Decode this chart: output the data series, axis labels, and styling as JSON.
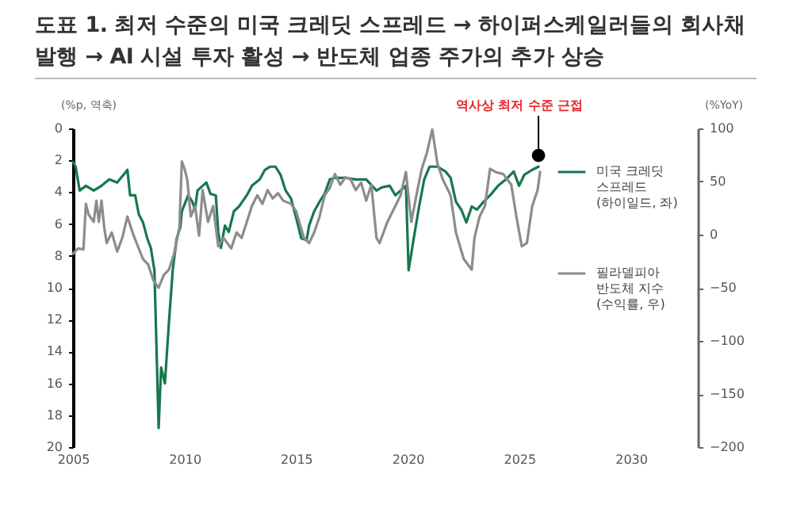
{
  "chart_data": {
    "type": "line",
    "title": "도표 1. 최저 수준의 미국 크레딧 스프레드 → 하이퍼스케일러들의 회사채 발행 → AI 시설 투자 활성 → 반도체 업종 주가의 추가 상승",
    "ylabel": "(%p, 역축)",
    "y2label": "(%YoY)",
    "xlim": [
      2005,
      2033
    ],
    "xticks": [
      2005,
      2010,
      2015,
      2020,
      2025,
      2030
    ],
    "ylim": [
      20,
      0
    ],
    "yticks": [
      0,
      2,
      4,
      6,
      8,
      10,
      12,
      14,
      16,
      18,
      20
    ],
    "y2lim": [
      -200,
      100
    ],
    "y2ticks": [
      {
        "value": -200,
        "label": "−200"
      },
      {
        "value": -150,
        "label": "−150"
      },
      {
        "value": -100,
        "label": "−100"
      },
      {
        "value": -50,
        "label": "−50"
      },
      0,
      50,
      100
    ],
    "legend": "right",
    "grid": false,
    "marker": "none",
    "line_style": "solid",
    "annotations": [
      {
        "text": "역사상 최저 수준 근접",
        "x": 2025.86,
        "y": 1.7
      }
    ],
    "series": [
      {
        "name": "미국 크레딧 스프레드 (하이일드, 좌)",
        "color": "#17784b",
        "axis": "y",
        "x": [
          2005.0,
          2005.12,
          2005.3,
          2005.58,
          2005.93,
          2006.28,
          2006.63,
          2006.98,
          2007.33,
          2007.44,
          2007.56,
          2007.79,
          2007.95,
          2008.14,
          2008.33,
          2008.49,
          2008.65,
          2008.84,
          2008.95,
          2009.12,
          2009.3,
          2009.47,
          2009.65,
          2009.81,
          2009.88,
          2010.05,
          2010.16,
          2010.35,
          2010.47,
          2010.58,
          2010.81,
          2010.98,
          2011.16,
          2011.4,
          2011.51,
          2011.63,
          2011.81,
          2011.98,
          2012.21,
          2012.44,
          2012.79,
          2013.02,
          2013.37,
          2013.6,
          2013.84,
          2014.07,
          2014.3,
          2014.53,
          2014.77,
          2015.0,
          2015.23,
          2015.47,
          2015.58,
          2015.81,
          2016.05,
          2016.28,
          2016.51,
          2016.74,
          2017.21,
          2017.67,
          2018.14,
          2018.6,
          2018.84,
          2019.19,
          2019.45,
          2019.68,
          2019.92,
          2020.04,
          2020.27,
          2020.51,
          2020.74,
          2020.98,
          2021.33,
          2021.69,
          2021.92,
          2022.16,
          2022.4,
          2022.63,
          2022.87,
          2023.1,
          2023.34,
          2023.69,
          2024.05,
          2024.4,
          2024.75,
          2024.99,
          2025.23,
          2025.58,
          2025.86
        ],
        "values": [
          2.1,
          2.4,
          3.9,
          3.6,
          3.9,
          3.6,
          3.2,
          3.4,
          2.8,
          2.6,
          4.2,
          4.2,
          5.4,
          5.9,
          6.9,
          7.5,
          8.9,
          18.8,
          15.0,
          16.0,
          12.2,
          8.9,
          6.9,
          6.2,
          5.2,
          4.6,
          4.2,
          4.6,
          5.1,
          3.9,
          3.6,
          3.4,
          4.1,
          4.2,
          6.5,
          7.5,
          6.1,
          6.5,
          5.2,
          4.9,
          4.2,
          3.6,
          3.2,
          2.6,
          2.4,
          2.4,
          2.9,
          3.9,
          4.4,
          5.6,
          6.9,
          7.0,
          6.1,
          5.2,
          4.6,
          4.1,
          3.2,
          3.1,
          3.1,
          3.2,
          3.2,
          3.9,
          3.7,
          3.6,
          4.2,
          3.9,
          3.6,
          8.9,
          6.9,
          4.9,
          3.2,
          2.4,
          2.4,
          2.7,
          3.1,
          4.6,
          5.1,
          5.9,
          4.9,
          5.1,
          4.7,
          4.2,
          3.6,
          3.2,
          2.7,
          3.6,
          2.9,
          2.6,
          2.4
        ]
      },
      {
        "name": "필라델피아 반도체 지수 (수익률, 우)",
        "color": "#8c8c8c",
        "axis": "y2",
        "x": [
          2005.0,
          2005.23,
          2005.47,
          2005.58,
          2005.7,
          2005.93,
          2006.05,
          2006.16,
          2006.28,
          2006.4,
          2006.51,
          2006.74,
          2006.98,
          2007.21,
          2007.44,
          2007.67,
          2007.91,
          2008.14,
          2008.37,
          2008.6,
          2008.84,
          2009.07,
          2009.3,
          2009.53,
          2009.77,
          2009.88,
          2010.0,
          2010.12,
          2010.28,
          2010.47,
          2010.65,
          2010.81,
          2011.05,
          2011.28,
          2011.51,
          2011.74,
          2012.09,
          2012.33,
          2012.56,
          2012.79,
          2013.02,
          2013.26,
          2013.49,
          2013.72,
          2013.95,
          2014.19,
          2014.42,
          2014.77,
          2015.0,
          2015.35,
          2015.58,
          2015.81,
          2016.05,
          2016.28,
          2016.51,
          2016.74,
          2016.98,
          2017.21,
          2017.44,
          2017.67,
          2017.91,
          2018.14,
          2018.37,
          2018.6,
          2018.74,
          2019.09,
          2019.33,
          2019.68,
          2019.92,
          2020.16,
          2020.39,
          2020.63,
          2020.86,
          2021.1,
          2021.33,
          2021.57,
          2021.92,
          2022.16,
          2022.51,
          2022.87,
          2022.99,
          2023.22,
          2023.46,
          2023.69,
          2023.93,
          2024.28,
          2024.64,
          2024.87,
          2025.11,
          2025.34,
          2025.58,
          2025.82,
          2025.93
        ],
        "values": [
          -18,
          -13,
          -14,
          29,
          19,
          12,
          32,
          12,
          32,
          7,
          -8,
          2,
          -16,
          -3,
          17,
          2,
          -11,
          -23,
          -28,
          -43,
          -50,
          -38,
          -33,
          -18,
          7,
          69,
          62,
          52,
          17,
          27,
          -1,
          42,
          12,
          27,
          -11,
          -3,
          -13,
          2,
          -3,
          12,
          27,
          37,
          29,
          42,
          34,
          39,
          32,
          29,
          22,
          -3,
          -8,
          2,
          17,
          37,
          44,
          57,
          47,
          54,
          52,
          42,
          49,
          32,
          47,
          -3,
          -8,
          12,
          22,
          37,
          59,
          12,
          37,
          62,
          77,
          99,
          67,
          52,
          37,
          2,
          -23,
          -33,
          -3,
          17,
          27,
          62,
          59,
          57,
          47,
          17,
          -11,
          -8,
          27,
          42,
          59
        ]
      }
    ]
  }
}
